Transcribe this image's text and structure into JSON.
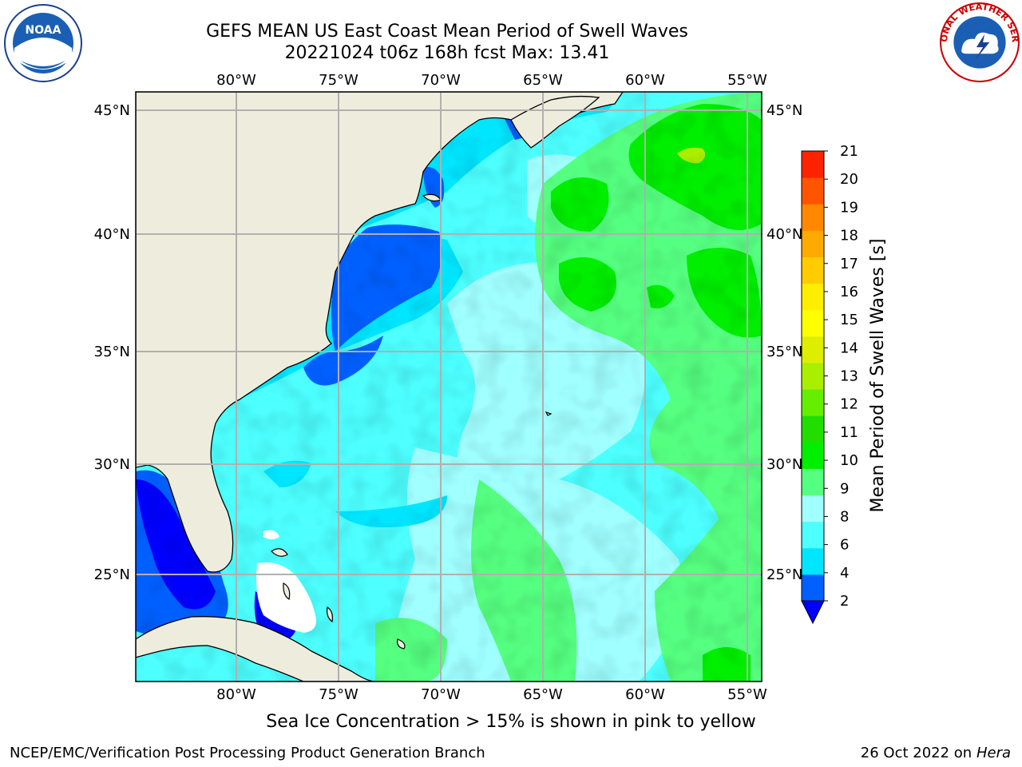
{
  "title": {
    "line1": "GEFS MEAN US East Coast Mean Period of Swell Waves",
    "line2": "20221024 t06z 168h fcst   Max: 13.41"
  },
  "logos": {
    "left": "noaa-logo",
    "right": "nws-logo",
    "left_text": "NOAA",
    "right_text": "NATIONAL WEATHER SERVICE"
  },
  "map": {
    "lon_labels": [
      "80°W",
      "75°W",
      "70°W",
      "65°W",
      "60°W",
      "55°W"
    ],
    "lat_labels": [
      "45°N",
      "40°N",
      "35°N",
      "30°N",
      "25°N"
    ],
    "land_color": "#eeeddd",
    "grid_color": "#b0b0b0"
  },
  "colorbar": {
    "label": "Mean Period of Swell Waves [s]",
    "ticks": [
      "2",
      "4",
      "6",
      "8",
      "9",
      "10",
      "11",
      "12",
      "13",
      "14",
      "15",
      "16",
      "17",
      "18",
      "19",
      "20",
      "21"
    ],
    "colors": [
      "#0060ff",
      "#00e6ff",
      "#4dffff",
      "#a0ffff",
      "#55ff80",
      "#00ee00",
      "#22dd00",
      "#66ee00",
      "#aaee00",
      "#ddee00",
      "#ffff00",
      "#ffee00",
      "#ffcc00",
      "#ffaa00",
      "#ff8800",
      "#ff5500",
      "#ff2200",
      "#ff0000"
    ],
    "under_color": "#0000ff"
  },
  "footer": {
    "ice_note": "Sea Ice Concentration > 15% is shown in pink to yellow",
    "left": "NCEP/EMC/Verification Post Processing Product Generation Branch",
    "right_date": "26 Oct 2022 on ",
    "right_machine": "Hera"
  }
}
